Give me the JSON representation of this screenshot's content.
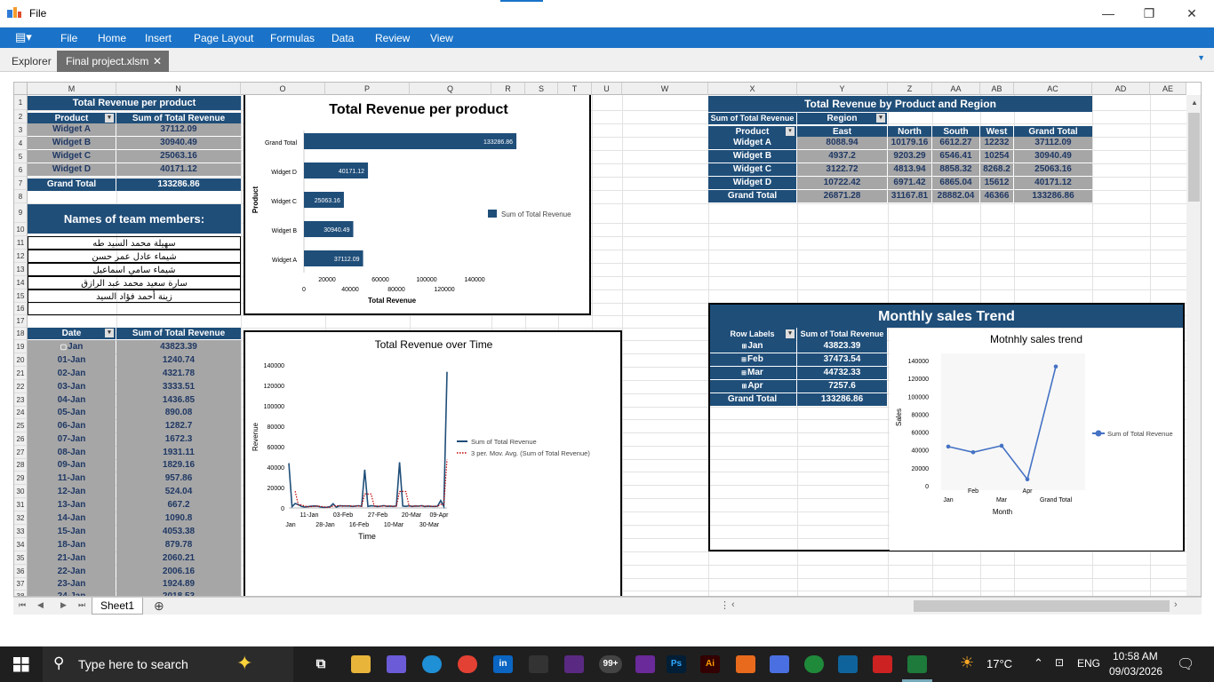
{
  "window": {
    "title": "File",
    "min": "—",
    "max": "❐",
    "close": "✕"
  },
  "menu": [
    "File",
    "Home",
    "Insert",
    "Page Layout",
    "Formulas",
    "Data",
    "Review",
    "View"
  ],
  "tabs": {
    "explorer": "Explorer",
    "active": "Final project.xlsm",
    "close": "✕"
  },
  "columns": [
    "M",
    "N",
    "O",
    "P",
    "Q",
    "R",
    "S",
    "T",
    "U",
    "W",
    "X",
    "Y",
    "Z",
    "AA",
    "AB",
    "AC",
    "AD",
    "AE"
  ],
  "rows": [
    "1",
    "2",
    "3",
    "4",
    "5",
    "6",
    "7",
    "8",
    "9",
    "10",
    "11",
    "12",
    "13",
    "14",
    "15",
    "16",
    "17",
    "18",
    "19",
    "20",
    "21",
    "22",
    "23",
    "24",
    "25",
    "26",
    "27",
    "28",
    "29",
    "30",
    "31",
    "32",
    "33",
    "34",
    "35",
    "36",
    "37",
    "38"
  ],
  "pivot_product": {
    "title": "Total Revenue per product",
    "col1": "Product",
    "col2": "Sum of Total Revenue",
    "rows": [
      [
        "Widget A",
        "37112.09"
      ],
      [
        "Widget B",
        "30940.49"
      ],
      [
        "Widget C",
        "25063.16"
      ],
      [
        "Widget D",
        "40171.12"
      ]
    ],
    "total": [
      "Grand Total",
      "133286.86"
    ]
  },
  "team": {
    "title": "Names of team members:",
    "names": [
      "سهيلة محمد السيد طه",
      "شيماء عادل عمر حسن",
      "شيماء سامي اسماعيل",
      "سارة سعيد محمد عبد الرازق",
      "زينة أحمد فؤاد السيد"
    ]
  },
  "pivot_date": {
    "col1": "Date",
    "col2": "Sum of Total Revenue",
    "rows": [
      [
        "Jan",
        "43823.39"
      ],
      [
        "01-Jan",
        "1240.74"
      ],
      [
        "02-Jan",
        "4321.78"
      ],
      [
        "03-Jan",
        "3333.51"
      ],
      [
        "04-Jan",
        "1436.85"
      ],
      [
        "05-Jan",
        "890.08"
      ],
      [
        "06-Jan",
        "1282.7"
      ],
      [
        "07-Jan",
        "1672.3"
      ],
      [
        "08-Jan",
        "1931.11"
      ],
      [
        "09-Jan",
        "1829.16"
      ],
      [
        "11-Jan",
        "957.86"
      ],
      [
        "12-Jan",
        "524.04"
      ],
      [
        "13-Jan",
        "667.2"
      ],
      [
        "14-Jan",
        "1090.8"
      ],
      [
        "15-Jan",
        "4053.38"
      ],
      [
        "18-Jan",
        "879.78"
      ],
      [
        "21-Jan",
        "2060.21"
      ],
      [
        "22-Jan",
        "2006.16"
      ],
      [
        "23-Jan",
        "1924.89"
      ],
      [
        "24-Jan",
        "2018.53"
      ]
    ]
  },
  "pivot_region": {
    "title": "Total Revenue by Product and Region",
    "corner": "Sum of Total Revenue",
    "region_label": "Region",
    "headers": [
      "Product",
      "East",
      "North",
      "South",
      "West",
      "Grand Total"
    ],
    "rows": [
      [
        "Widget A",
        "8088.94",
        "10179.16",
        "6612.27",
        "12232",
        "37112.09"
      ],
      [
        "Widget B",
        "4937.2",
        "9203.29",
        "6546.41",
        "10254",
        "30940.49"
      ],
      [
        "Widget C",
        "3122.72",
        "4813.94",
        "8858.32",
        "8268.2",
        "25063.16"
      ],
      [
        "Widget D",
        "10722.42",
        "6971.42",
        "6865.04",
        "15612",
        "40171.12"
      ],
      [
        "Grand Total",
        "26871.28",
        "31167.81",
        "28882.04",
        "46366",
        "133286.86"
      ]
    ]
  },
  "pivot_month": {
    "title": "Monthly sales Trend",
    "col1": "Row Labels",
    "col2": "Sum of Total Revenue",
    "rows": [
      [
        "Jan",
        "43823.39"
      ],
      [
        "Feb",
        "37473.54"
      ],
      [
        "Mar",
        "44732.33"
      ],
      [
        "Apr",
        "7257.6"
      ]
    ],
    "total": [
      "Grand Total",
      "133286.86"
    ]
  },
  "chart_data": [
    {
      "type": "bar",
      "title": "Total Revenue per product",
      "xlabel": "Total Revenue",
      "ylabel": "Product",
      "categories": [
        "Widget A",
        "Widget B",
        "Widget C",
        "Widget D",
        "Grand Total"
      ],
      "values": [
        37112.09,
        30940.49,
        25063.16,
        40171.12,
        133286.86
      ],
      "data_labels": [
        "37112.09",
        "30940.49",
        "25063.16",
        "40171.12",
        "133286.86"
      ],
      "xlim": [
        0,
        140000
      ],
      "x_ticks_upper": [
        "20000",
        "60000",
        "100000",
        "140000"
      ],
      "x_ticks_lower": [
        "0",
        "40000",
        "80000",
        "120000"
      ],
      "series": [
        {
          "name": "Sum of Total Revenue",
          "color": "#1f4e79"
        }
      ],
      "legend": "right"
    },
    {
      "type": "line",
      "title": "Total Revenue over Time",
      "xlabel": "Time",
      "ylabel": "Revenue",
      "ylim": [
        0,
        140000
      ],
      "y_ticks": [
        "0",
        "20000",
        "40000",
        "60000",
        "80000",
        "100000",
        "120000",
        "140000"
      ],
      "x_ticks_upper": [
        "11-Jan",
        "03-Feb",
        "27-Feb",
        "20-Mar",
        "09-Apr"
      ],
      "x_ticks_lower": [
        "Jan",
        "28-Jan",
        "16-Feb",
        "10-Mar",
        "30-Mar"
      ],
      "series": [
        {
          "name": "Sum of Total Revenue",
          "color": "#1f4e79",
          "values": [
            43823,
            1240,
            4321,
            3333,
            1436,
            890,
            1282,
            1672,
            1931,
            1829,
            957,
            524,
            667,
            1090,
            4053,
            879,
            2060,
            2006,
            1924,
            2018,
            1500,
            1800,
            2200,
            1600,
            37473,
            1500,
            2100,
            1900,
            1400,
            1700,
            2300,
            1600,
            1800,
            1500,
            2000,
            44732,
            1800,
            1600,
            2100,
            1500,
            1900,
            1700,
            2200,
            1400,
            1800,
            1600,
            1500,
            1700,
            7257,
            1500,
            133286
          ]
        },
        {
          "name": "3 per. Mov. Avg. (Sum of Total Revenue)",
          "color": "#c00000",
          "style": "dotted"
        }
      ],
      "legend": "right"
    },
    {
      "type": "line",
      "title": "Motnhly sales trend",
      "xlabel": "Month",
      "ylabel": "Sales",
      "categories": [
        "Jan",
        "Feb",
        "Mar",
        "Apr",
        "Grand Total"
      ],
      "values": [
        43823.39,
        37473.54,
        44732.33,
        7257.6,
        133286.86
      ],
      "ylim": [
        0,
        140000
      ],
      "y_ticks": [
        "0",
        "20000",
        "40000",
        "60000",
        "80000",
        "100000",
        "120000",
        "140000"
      ],
      "series": [
        {
          "name": "Sum of Total Revenue",
          "color": "#4472c4"
        }
      ],
      "legend": "right"
    }
  ],
  "sheetbar": {
    "sheet": "Sheet1",
    "add": "⊕"
  },
  "taskbar": {
    "search": "Type here to search",
    "weather": "17°C",
    "lang": "ENG",
    "time": "10:58 AM",
    "date": "09/03/2026",
    "badge": "99+"
  }
}
